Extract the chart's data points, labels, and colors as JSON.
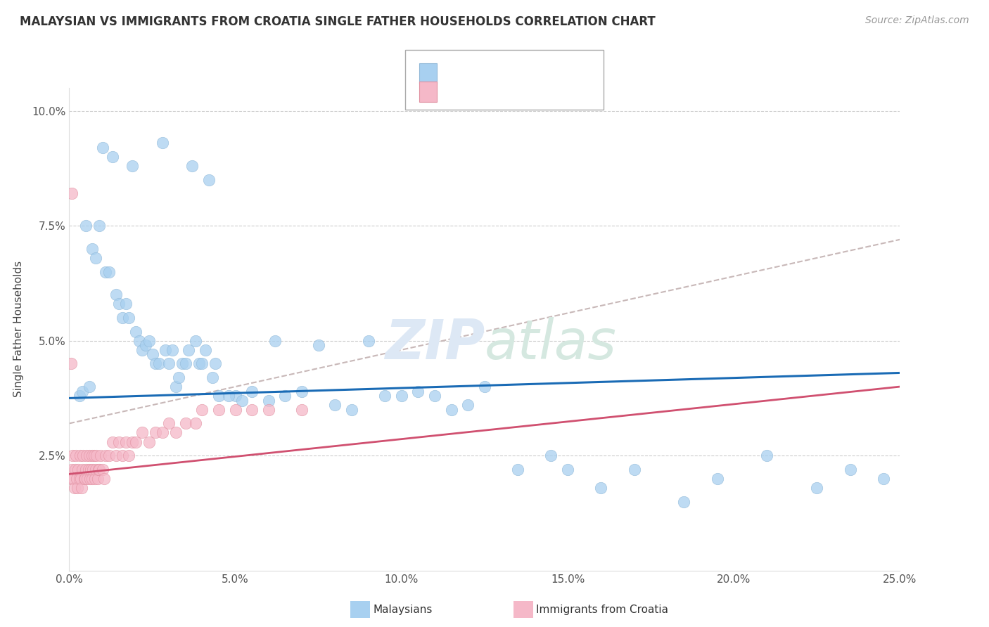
{
  "title": "MALAYSIAN VS IMMIGRANTS FROM CROATIA SINGLE FATHER HOUSEHOLDS CORRELATION CHART",
  "source": "Source: ZipAtlas.com",
  "ylabel": "Single Father Households",
  "xlabel_vals": [
    0.0,
    5.0,
    10.0,
    15.0,
    20.0,
    25.0
  ],
  "ylabel_vals": [
    2.5,
    5.0,
    7.5,
    10.0
  ],
  "blue_color": "#a8d0f0",
  "pink_color": "#f5b8c8",
  "trend_blue": "#1a6bb5",
  "trend_pink": "#d05070",
  "trend_grey_color": "#c8b8b8",
  "xlim": [
    0.0,
    25.0
  ],
  "ylim": [
    0.0,
    10.5
  ],
  "blue_trend": [
    3.75,
    4.3
  ],
  "pink_trend": [
    2.1,
    4.0
  ],
  "grey_trend": [
    3.2,
    7.2
  ],
  "malaysians_x": [
    1.0,
    1.3,
    1.9,
    2.8,
    3.7,
    4.2,
    0.5,
    0.7,
    0.8,
    0.9,
    1.1,
    1.2,
    1.4,
    1.5,
    1.6,
    1.7,
    1.8,
    2.0,
    2.1,
    2.2,
    2.3,
    2.4,
    2.5,
    2.6,
    2.7,
    2.9,
    3.0,
    3.1,
    3.2,
    3.3,
    3.4,
    3.5,
    3.6,
    3.8,
    3.9,
    4.0,
    4.1,
    4.3,
    4.4,
    4.5,
    5.0,
    5.5,
    6.0,
    6.5,
    7.0,
    8.0,
    9.5,
    10.5,
    11.0,
    11.5,
    12.0,
    13.5,
    15.0,
    16.0,
    18.5,
    22.5,
    0.3,
    0.4,
    0.6,
    4.8,
    5.2,
    6.2,
    7.5,
    8.5,
    9.0,
    10.0,
    12.5,
    14.5,
    17.0,
    19.5,
    21.0,
    23.5,
    24.5
  ],
  "malaysians_y": [
    9.2,
    9.0,
    8.8,
    9.3,
    8.8,
    8.5,
    7.5,
    7.0,
    6.8,
    7.5,
    6.5,
    6.5,
    6.0,
    5.8,
    5.5,
    5.8,
    5.5,
    5.2,
    5.0,
    4.8,
    4.9,
    5.0,
    4.7,
    4.5,
    4.5,
    4.8,
    4.5,
    4.8,
    4.0,
    4.2,
    4.5,
    4.5,
    4.8,
    5.0,
    4.5,
    4.5,
    4.8,
    4.2,
    4.5,
    3.8,
    3.8,
    3.9,
    3.7,
    3.8,
    3.9,
    3.6,
    3.8,
    3.9,
    3.8,
    3.5,
    3.6,
    2.2,
    2.2,
    1.8,
    1.5,
    1.8,
    3.8,
    3.9,
    4.0,
    3.8,
    3.7,
    5.0,
    4.9,
    3.5,
    5.0,
    3.8,
    4.0,
    2.5,
    2.2,
    2.0,
    2.5,
    2.2,
    2.0
  ],
  "croatia_x": [
    0.05,
    0.07,
    0.1,
    0.12,
    0.15,
    0.18,
    0.2,
    0.22,
    0.25,
    0.27,
    0.3,
    0.32,
    0.35,
    0.38,
    0.4,
    0.42,
    0.45,
    0.48,
    0.5,
    0.52,
    0.55,
    0.58,
    0.6,
    0.62,
    0.65,
    0.68,
    0.7,
    0.72,
    0.75,
    0.78,
    0.8,
    0.82,
    0.85,
    0.88,
    0.9,
    0.95,
    1.0,
    1.05,
    1.1,
    1.2,
    1.3,
    1.4,
    1.5,
    1.6,
    1.7,
    1.8,
    1.9,
    2.0,
    2.2,
    2.4,
    2.6,
    2.8,
    3.0,
    3.2,
    3.5,
    3.8,
    4.0,
    4.5,
    5.0,
    5.5,
    6.0,
    7.0,
    0.05,
    0.08
  ],
  "croatia_y": [
    2.0,
    2.2,
    2.5,
    2.0,
    1.8,
    2.2,
    2.5,
    2.0,
    1.8,
    2.2,
    2.0,
    2.5,
    2.0,
    1.8,
    2.2,
    2.5,
    2.0,
    2.0,
    2.2,
    2.5,
    2.0,
    2.2,
    2.5,
    2.0,
    2.2,
    2.5,
    2.0,
    2.2,
    2.5,
    2.0,
    2.2,
    2.5,
    2.0,
    2.2,
    2.2,
    2.5,
    2.2,
    2.0,
    2.5,
    2.5,
    2.8,
    2.5,
    2.8,
    2.5,
    2.8,
    2.5,
    2.8,
    2.8,
    3.0,
    2.8,
    3.0,
    3.0,
    3.2,
    3.0,
    3.2,
    3.2,
    3.5,
    3.5,
    3.5,
    3.5,
    3.5,
    3.5,
    4.5,
    8.2
  ]
}
